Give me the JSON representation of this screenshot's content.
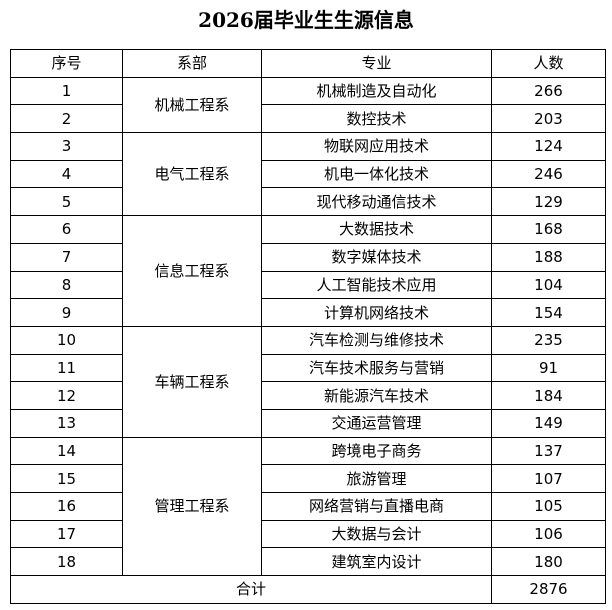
{
  "title": "2026届毕业生生源信息",
  "headers": [
    "序号",
    "系部",
    "专业",
    "人数"
  ],
  "departments": [
    {
      "name": "机械工程系",
      "majors": [
        {
          "no": "1",
          "major": "机械制造及自动化",
          "count": "266"
        },
        {
          "no": "2",
          "major": "数控技术",
          "count": "203"
        }
      ]
    },
    {
      "name": "电气工程系",
      "majors": [
        {
          "no": "3",
          "major": "物联网应用技术",
          "count": "124"
        },
        {
          "no": "4",
          "major": "机电一体化技术",
          "count": "246"
        },
        {
          "no": "5",
          "major": "现代移动通信技术",
          "count": "129"
        }
      ]
    },
    {
      "name": "信息工程系",
      "majors": [
        {
          "no": "6",
          "major": "大数据技术",
          "count": "168"
        },
        {
          "no": "7",
          "major": "数字媒体技术",
          "count": "188"
        },
        {
          "no": "8",
          "major": "人工智能技术应用",
          "count": "104"
        },
        {
          "no": "9",
          "major": "计算机网络技术",
          "count": "154"
        }
      ]
    },
    {
      "name": "车辆工程系",
      "majors": [
        {
          "no": "10",
          "major": "汽车检测与维修技术",
          "count": "235"
        },
        {
          "no": "11",
          "major": "汽车技术服务与营销",
          "count": "91"
        },
        {
          "no": "12",
          "major": "新能源汽车技术",
          "count": "184"
        },
        {
          "no": "13",
          "major": "交通运营管理",
          "count": "149"
        }
      ]
    },
    {
      "name": "管理工程系",
      "majors": [
        {
          "no": "14",
          "major": "跨境电子商务",
          "count": "137"
        },
        {
          "no": "15",
          "major": "旅游管理",
          "count": "107"
        },
        {
          "no": "16",
          "major": "网络营销与直播电商",
          "count": "105"
        },
        {
          "no": "17",
          "major": "大数据与会计",
          "count": "106"
        },
        {
          "no": "18",
          "major": "建筑室内设计",
          "count": "180"
        }
      ]
    }
  ],
  "total": {
    "label": "合计",
    "count": "2876"
  }
}
